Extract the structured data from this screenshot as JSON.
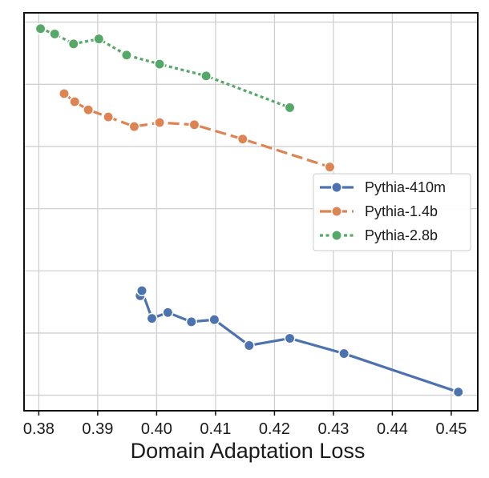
{
  "chart_data": {
    "type": "line",
    "title": "",
    "xlabel": "Domain Adaptation Loss",
    "ylabel": "",
    "xlim": [
      0.3775,
      0.4545
    ],
    "ylim": [
      0,
      12.8
    ],
    "x_ticks": [
      "0.38",
      "0.39",
      "0.40",
      "0.41",
      "0.42",
      "0.43",
      "0.44",
      "0.45"
    ],
    "x_tick_values": [
      0.38,
      0.39,
      0.4,
      0.41,
      0.42,
      0.43,
      0.44,
      0.45
    ],
    "y_tick_values": [
      0.5,
      2.5,
      4.5,
      6.5,
      8.5,
      10.5,
      12.5
    ],
    "y_tick_labels_visible": false,
    "grid": true,
    "legend_position": "center-right",
    "series": [
      {
        "name": "Pythia-410m",
        "color": "#4c72b0",
        "line_style": "solid",
        "marker": "circle",
        "points": [
          [
            0.3972,
            3.7
          ],
          [
            0.3975,
            3.86
          ],
          [
            0.3992,
            2.97
          ],
          [
            0.4019,
            3.16
          ],
          [
            0.4059,
            2.86
          ],
          [
            0.4098,
            2.93
          ],
          [
            0.4157,
            2.1
          ],
          [
            0.4226,
            2.33
          ],
          [
            0.4318,
            1.84
          ],
          [
            0.4512,
            0.6
          ]
        ]
      },
      {
        "name": "Pythia-1.4b",
        "color": "#dd8452",
        "line_style": "dashed",
        "marker": "circle",
        "points": [
          [
            0.3843,
            10.2
          ],
          [
            0.3861,
            9.94
          ],
          [
            0.3884,
            9.68
          ],
          [
            0.3918,
            9.45
          ],
          [
            0.3962,
            9.14
          ],
          [
            0.4005,
            9.27
          ],
          [
            0.4064,
            9.2
          ],
          [
            0.4146,
            8.74
          ],
          [
            0.4294,
            7.84
          ]
        ]
      },
      {
        "name": "Pythia-2.8b",
        "color": "#55a868",
        "line_style": "dotted",
        "marker": "circle",
        "points": [
          [
            0.3803,
            12.29
          ],
          [
            0.3827,
            12.12
          ],
          [
            0.3859,
            11.8
          ],
          [
            0.3902,
            11.96
          ],
          [
            0.3949,
            11.44
          ],
          [
            0.4005,
            11.15
          ],
          [
            0.4084,
            10.77
          ],
          [
            0.4226,
            9.75
          ]
        ]
      }
    ]
  }
}
